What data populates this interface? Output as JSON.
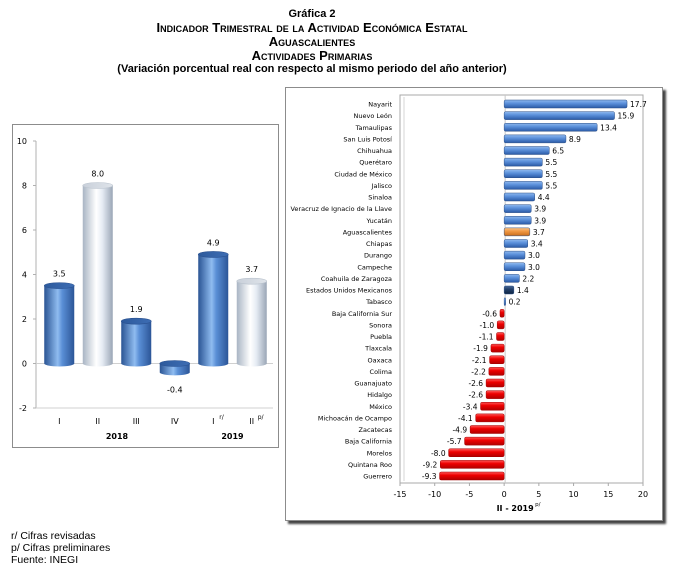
{
  "header": {
    "figure_label": "Gráfica 2",
    "title_line1": "Indicador Trimestral de la Actividad Económica Estatal",
    "title_line2": "Aguascalientes",
    "title_line3": "Actividades Primarias",
    "subtitle": "(Variación porcentual real con respecto al mismo periodo del año anterior)"
  },
  "footnotes": {
    "revised": "r/ Cifras revisadas",
    "preliminary": "p/ Cifras preliminares",
    "source": "Fuente: INEGI"
  },
  "colors": {
    "blue_bar": "#4a7fc8",
    "white_bar": "#e8eef6",
    "orange_bar": "#f0943c",
    "national_bar": "#1f3b63",
    "negative_bar": "#e60000",
    "frame": "#8c8c8c"
  },
  "chart_data": [
    {
      "type": "bar",
      "orientation": "vertical",
      "title": "",
      "categories": [
        "I",
        "II",
        "III",
        "IV",
        "I",
        "II"
      ],
      "category_superscripts": [
        "",
        "",
        "",
        "",
        "r/",
        "p/"
      ],
      "groups": [
        {
          "label": "2018",
          "categories": [
            0,
            1,
            2,
            3
          ]
        },
        {
          "label": "2019",
          "categories": [
            4,
            5
          ]
        }
      ],
      "values": [
        3.5,
        8.0,
        1.9,
        -0.4,
        4.9,
        3.7
      ],
      "value_labels": [
        "3.5",
        "8.0",
        "1.9",
        "-0.4",
        "4.9",
        "3.7"
      ],
      "bar_styles": [
        "blue",
        "white",
        "blue",
        "blue",
        "blue",
        "white"
      ],
      "xlabel": "",
      "ylabel": "",
      "ylim": [
        -2,
        10
      ],
      "yticks": [
        -2,
        0,
        2,
        4,
        6,
        8,
        10
      ],
      "grid": false,
      "legend": "none"
    },
    {
      "type": "bar",
      "orientation": "horizontal",
      "title": "",
      "categories": [
        "Nayarit",
        "Nuevo León",
        "Tamaulipas",
        "San Luis Potosí",
        "Chihuahua",
        "Querétaro",
        "Ciudad de México",
        "Jalisco",
        "Sinaloa",
        "Veracruz de Ignacio de la Llave",
        "Yucatán",
        "Aguascalientes",
        "Chiapas",
        "Durango",
        "Campeche",
        "Coahuila de Zaragoza",
        "Estados Unidos Mexicanos",
        "Tabasco",
        "Baja California Sur",
        "Sonora",
        "Puebla",
        "Tlaxcala",
        "Oaxaca",
        "Colima",
        "Guanajuato",
        "Hidalgo",
        "México",
        "Michoacán de Ocampo",
        "Zacatecas",
        "Baja California",
        "Morelos",
        "Quintana Roo",
        "Guerrero"
      ],
      "values": [
        17.7,
        15.9,
        13.4,
        8.9,
        6.5,
        5.5,
        5.5,
        5.5,
        4.4,
        3.9,
        3.9,
        3.7,
        3.4,
        3.0,
        3.0,
        2.2,
        1.4,
        0.2,
        -0.6,
        -1.0,
        -1.1,
        -1.9,
        -2.1,
        -2.2,
        -2.6,
        -2.6,
        -3.4,
        -4.1,
        -4.9,
        -5.7,
        -8.0,
        -9.2,
        -9.3
      ],
      "value_labels": [
        "17.7",
        "15.9",
        "13.4",
        "8.9",
        "6.5",
        "5.5",
        "5.5",
        "5.5",
        "4.4",
        "3.9",
        "3.9",
        "3.7",
        "3.4",
        "3.0",
        "3.0",
        "2.2",
        "1.4",
        "0.2",
        "-0.6",
        "-1.0",
        "-1.1",
        "-1.9",
        "-2.1",
        "-2.2",
        "-2.6",
        "-2.6",
        "-3.4",
        "-4.1",
        "-4.9",
        "-5.7",
        "-8.0",
        "-9.2",
        "-9.3"
      ],
      "highlight": {
        "Aguascalientes": "orange",
        "Estados Unidos Mexicanos": "national"
      },
      "xlabel": "II - 2019",
      "xlabel_superscript": "p/",
      "ylabel": "",
      "xlim": [
        -15,
        20
      ],
      "xticks": [
        -15,
        -10,
        -5,
        0,
        5,
        10,
        15,
        20
      ],
      "grid": false,
      "legend": "none"
    }
  ]
}
